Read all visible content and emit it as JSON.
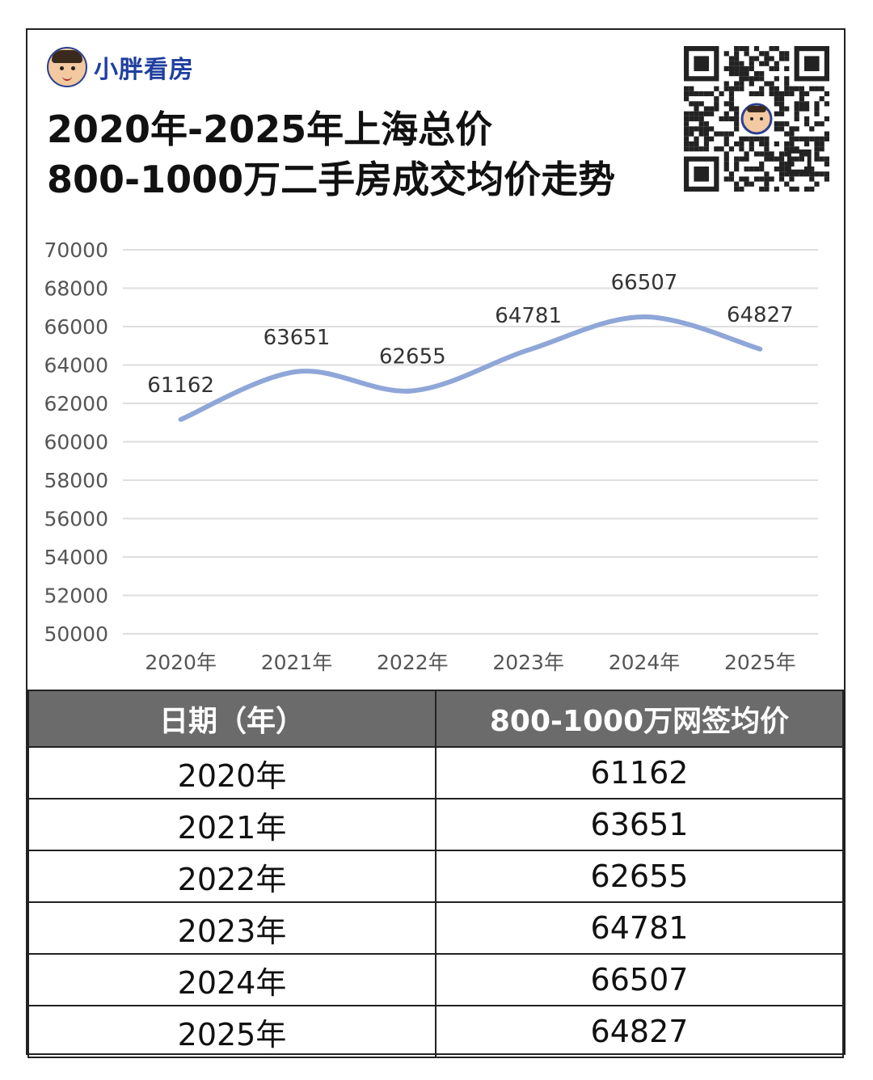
{
  "brand": {
    "name": "小胖看房",
    "avatar_icon": "cartoon-avatar-icon"
  },
  "title_lines": [
    "2020年-2025年上海总价",
    "800-1000万二手房成交均价走势"
  ],
  "qr_code": {
    "icon": "qr-code-icon"
  },
  "chart_data": {
    "type": "line",
    "categories": [
      "2020年",
      "2021年",
      "2022年",
      "2023年",
      "2024年",
      "2025年"
    ],
    "series": [
      {
        "values": [
          61162,
          63651,
          62655,
          64781,
          66507,
          64827
        ],
        "color": "#8fa6d8",
        "smooth": true
      }
    ],
    "ylim": [
      50000,
      70000
    ],
    "yticks": [
      70000,
      68000,
      66000,
      64000,
      62000,
      60000,
      58000,
      56000,
      54000,
      52000,
      50000
    ],
    "grid": true,
    "data_labels": true
  },
  "table": {
    "headers": [
      "日期（年）",
      "800-1000万网签均价"
    ],
    "rows": [
      [
        "2020年",
        "61162"
      ],
      [
        "2021年",
        "63651"
      ],
      [
        "2022年",
        "62655"
      ],
      [
        "2023年",
        "64781"
      ],
      [
        "2024年",
        "66507"
      ],
      [
        "2025年",
        "64827"
      ]
    ]
  }
}
